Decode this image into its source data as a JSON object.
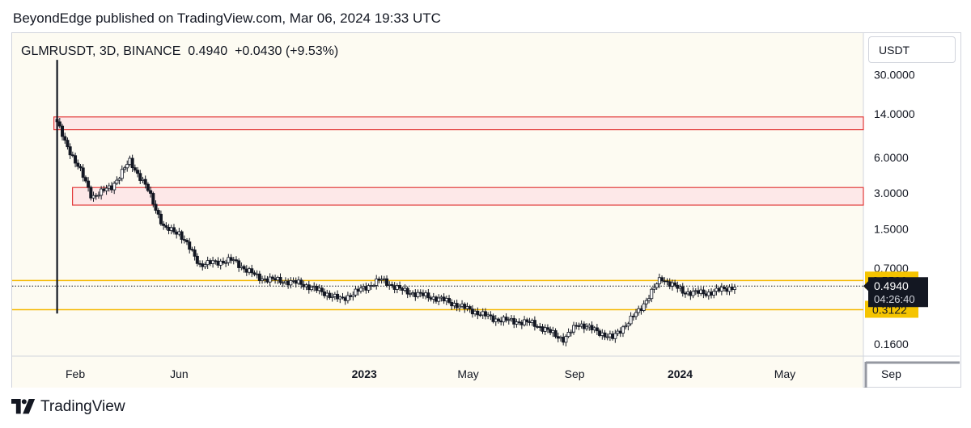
{
  "header": {
    "published": "BeyondEdge published on TradingView.com, Mar 06, 2024 19:33 UTC"
  },
  "symbol": {
    "line": "GLMRUSDT, 3D, BINANCE  0.4940  +0.0430 (+9.53%)"
  },
  "currency": "USDT",
  "footer": {
    "brand": "TradingView",
    "logo_icon": "tradingview-logo-icon"
  },
  "colors": {
    "plot_bg": "#fdfbf2",
    "candle": "#131722",
    "zone_fill": "#fde8e8",
    "zone_border": "#e23b3b",
    "level_line": "#f5b800",
    "level_label_bg": "#f5c400",
    "price_label_bg": "#131722"
  },
  "chart_data": {
    "type": "candlestick",
    "y_scale": "log",
    "ylim": [
      0.11,
      42
    ],
    "y_ticks": [
      {
        "value": 30,
        "label": "30.0000"
      },
      {
        "value": 14,
        "label": "14.0000"
      },
      {
        "value": 6,
        "label": "6.0000"
      },
      {
        "value": 3,
        "label": "3.0000"
      },
      {
        "value": 1.5,
        "label": "1.5000"
      },
      {
        "value": 0.7,
        "label": "0.7000"
      },
      {
        "value": 0.16,
        "label": "0.1600"
      }
    ],
    "x_range": [
      "2021-11-20",
      "2024-11-20"
    ],
    "x_ticks": [
      {
        "date": "2022-02-01",
        "label": "Feb",
        "bold": false
      },
      {
        "date": "2022-06-01",
        "label": "Jun",
        "bold": false
      },
      {
        "date": "2023-01-01",
        "label": "2023",
        "bold": true
      },
      {
        "date": "2023-05-01",
        "label": "May",
        "bold": false
      },
      {
        "date": "2023-09-01",
        "label": "Sep",
        "bold": false
      },
      {
        "date": "2024-01-01",
        "label": "2024",
        "bold": true
      },
      {
        "date": "2024-05-01",
        "label": "May",
        "bold": false
      },
      {
        "date": "2024-09-01",
        "label": "Sep",
        "bold": false
      }
    ],
    "price_path": [
      [
        "2022-01-11",
        12.0
      ],
      [
        "2022-01-20",
        8.0
      ],
      [
        "2022-02-05",
        5.0
      ],
      [
        "2022-02-20",
        2.8
      ],
      [
        "2022-03-15",
        3.4
      ],
      [
        "2022-04-05",
        5.6
      ],
      [
        "2022-04-25",
        3.3
      ],
      [
        "2022-05-15",
        1.5
      ],
      [
        "2022-06-01",
        1.4
      ],
      [
        "2022-06-25",
        0.75
      ],
      [
        "2022-08-01",
        0.82
      ],
      [
        "2022-09-01",
        0.58
      ],
      [
        "2022-10-20",
        0.52
      ],
      [
        "2022-12-05",
        0.38
      ],
      [
        "2023-01-20",
        0.56
      ],
      [
        "2023-02-15",
        0.45
      ],
      [
        "2023-04-01",
        0.38
      ],
      [
        "2023-06-01",
        0.26
      ],
      [
        "2023-07-15",
        0.24
      ],
      [
        "2023-08-20",
        0.175
      ],
      [
        "2023-09-05",
        0.24
      ],
      [
        "2023-10-15",
        0.18
      ],
      [
        "2023-11-15",
        0.31
      ],
      [
        "2023-12-10",
        0.58
      ],
      [
        "2024-01-05",
        0.44
      ],
      [
        "2024-02-01",
        0.43
      ],
      [
        "2024-03-06",
        0.494
      ]
    ],
    "annotations": {
      "resistance_zones": [
        {
          "low": 10.3,
          "high": 13.2
        },
        {
          "low": 2.38,
          "high": 3.35
        }
      ],
      "horizontal_levels": [
        {
          "value": 0.5506,
          "label": "0.5506"
        },
        {
          "value": 0.3122,
          "label": "0.3122"
        }
      ],
      "first_bar": {
        "date": "2022-01-11",
        "high": 40,
        "low": 0.29
      },
      "current_price": {
        "value": 0.494,
        "label": "0.4940",
        "countdown": "04:26:40"
      }
    }
  }
}
